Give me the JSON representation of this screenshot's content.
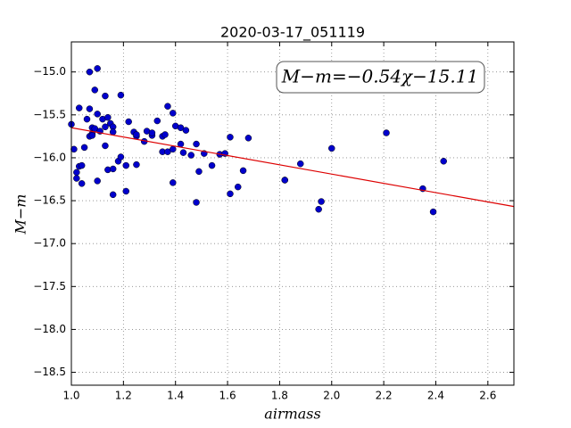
{
  "chart_data": {
    "type": "scatter",
    "title": "2020-03-17_051119",
    "x_label": "airmass",
    "y_label": "M−m",
    "annotation": "M−m=−0.54χ−15.11",
    "x": [
      1.0,
      1.01,
      1.02,
      1.02,
      1.03,
      1.04,
      1.04,
      1.03,
      1.05,
      1.06,
      1.07,
      1.07,
      1.07,
      1.08,
      1.08,
      1.09,
      1.08,
      1.09,
      1.1,
      1.1,
      1.1,
      1.11,
      1.12,
      1.13,
      1.13,
      1.13,
      1.14,
      1.14,
      1.15,
      1.16,
      1.16,
      1.16,
      1.16,
      1.18,
      1.19,
      1.19,
      1.21,
      1.21,
      1.22,
      1.24,
      1.25,
      1.25,
      1.25,
      1.28,
      1.29,
      1.31,
      1.31,
      1.33,
      1.35,
      1.35,
      1.36,
      1.37,
      1.37,
      1.39,
      1.39,
      1.39,
      1.4,
      1.42,
      1.42,
      1.43,
      1.44,
      1.46,
      1.48,
      1.48,
      1.49,
      1.51,
      1.54,
      1.57,
      1.59,
      1.61,
      1.61,
      1.64,
      1.66,
      1.68,
      1.82,
      1.82,
      1.88,
      1.95,
      1.96,
      2.0,
      2.21,
      2.35,
      2.39,
      2.43
    ],
    "values": [
      -15.61,
      -15.9,
      -16.24,
      -16.17,
      -16.1,
      -16.09,
      -16.3,
      -15.42,
      -15.88,
      -15.55,
      -15.0,
      -15.43,
      -15.75,
      -15.65,
      -15.72,
      -15.66,
      -15.74,
      -15.21,
      -14.96,
      -16.27,
      -15.49,
      -15.69,
      -15.55,
      -15.28,
      -15.86,
      -15.64,
      -15.53,
      -16.14,
      -15.6,
      -15.64,
      -15.7,
      -16.13,
      -16.43,
      -16.04,
      -15.99,
      -15.27,
      -16.09,
      -16.39,
      -15.58,
      -15.7,
      -16.08,
      -15.75,
      -15.73,
      -15.81,
      -15.69,
      -15.74,
      -15.71,
      -15.57,
      -15.75,
      -15.93,
      -15.73,
      -15.4,
      -15.93,
      -15.48,
      -16.29,
      -15.9,
      -15.63,
      -15.84,
      -15.65,
      -15.94,
      -15.68,
      -15.97,
      -15.84,
      -16.52,
      -16.16,
      -15.95,
      -16.09,
      -15.96,
      -15.95,
      -16.42,
      -15.76,
      -16.34,
      -16.15,
      -15.77,
      -16.26,
      -16.26,
      -16.07,
      -16.6,
      -16.51,
      -15.89,
      -15.71,
      -16.36,
      -16.63,
      -16.04
    ],
    "color": "#0000cc",
    "fit": {
      "x": [
        1.0,
        2.7
      ],
      "values": [
        -15.65,
        -16.568
      ],
      "color": "#dd0000"
    },
    "xlim": [
      1.0,
      2.7
    ],
    "xticks": [
      {
        "value": 1.0,
        "label": "1.0"
      },
      1.2,
      1.4,
      1.6,
      1.8,
      {
        "value": 2.0,
        "label": "2.0"
      },
      2.2,
      2.4,
      2.6
    ],
    "ylim": [
      -18.65,
      -14.65
    ],
    "yticks": [
      {
        "value": -15.0,
        "label": "−15.0"
      },
      {
        "value": -15.5,
        "label": "−15.5"
      },
      {
        "value": -16.0,
        "label": "−16.0"
      },
      {
        "value": -16.5,
        "label": "−16.5"
      },
      {
        "value": -17.0,
        "label": "−17.0"
      },
      {
        "value": -17.5,
        "label": "−17.5"
      },
      {
        "value": -18.0,
        "label": "−18.0"
      },
      {
        "value": -18.5,
        "label": "−18.5"
      }
    ],
    "grid": true
  }
}
